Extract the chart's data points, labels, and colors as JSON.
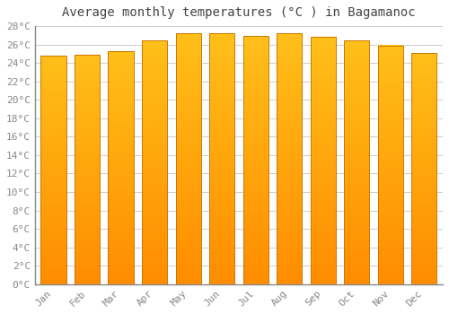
{
  "title": "Average monthly temperatures (°C ) in Bagamanoc",
  "months": [
    "Jan",
    "Feb",
    "Mar",
    "Apr",
    "May",
    "Jun",
    "Jul",
    "Aug",
    "Sep",
    "Oct",
    "Nov",
    "Dec"
  ],
  "temperatures": [
    24.8,
    24.9,
    25.3,
    26.4,
    27.2,
    27.2,
    26.9,
    27.2,
    26.8,
    26.4,
    25.9,
    25.1
  ],
  "bar_color_center": "#FFA500",
  "bar_color_top": "#FFB830",
  "bar_color_bottom": "#FF8C00",
  "bar_edge_color": "#CC7700",
  "ylim": [
    0,
    28
  ],
  "ytick_step": 2,
  "background_color": "#ffffff",
  "grid_color": "#cccccc",
  "title_fontsize": 10,
  "tick_fontsize": 8,
  "font_family": "monospace"
}
